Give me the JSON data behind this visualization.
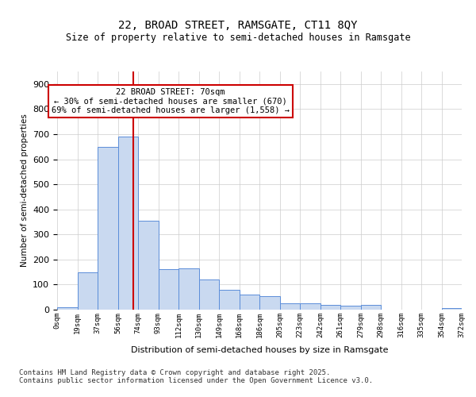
{
  "title1": "22, BROAD STREET, RAMSGATE, CT11 8QY",
  "title2": "Size of property relative to semi-detached houses in Ramsgate",
  "xlabel": "Distribution of semi-detached houses by size in Ramsgate",
  "ylabel": "Number of semi-detached properties",
  "bin_labels": [
    "0sqm",
    "19sqm",
    "37sqm",
    "56sqm",
    "74sqm",
    "93sqm",
    "112sqm",
    "130sqm",
    "149sqm",
    "168sqm",
    "186sqm",
    "205sqm",
    "223sqm",
    "242sqm",
    "261sqm",
    "279sqm",
    "298sqm",
    "316sqm",
    "335sqm",
    "354sqm",
    "372sqm"
  ],
  "bar_heights": [
    10,
    150,
    650,
    690,
    355,
    160,
    165,
    120,
    80,
    60,
    55,
    25,
    25,
    20,
    15,
    18,
    0,
    0,
    0,
    5
  ],
  "bar_color": "#c9d9f0",
  "bar_edge_color": "#5b8dd9",
  "red_line_x": 3.0,
  "annotation_text": "22 BROAD STREET: 70sqm\n← 30% of semi-detached houses are smaller (670)\n69% of semi-detached houses are larger (1,558) →",
  "annotation_box_color": "#ffffff",
  "annotation_box_edge": "#cc0000",
  "footer_text": "Contains HM Land Registry data © Crown copyright and database right 2025.\nContains public sector information licensed under the Open Government Licence v3.0.",
  "ylim": [
    0,
    950
  ],
  "yticks": [
    0,
    100,
    200,
    300,
    400,
    500,
    600,
    700,
    800,
    900
  ],
  "background_color": "#ffffff",
  "grid_color": "#cccccc"
}
